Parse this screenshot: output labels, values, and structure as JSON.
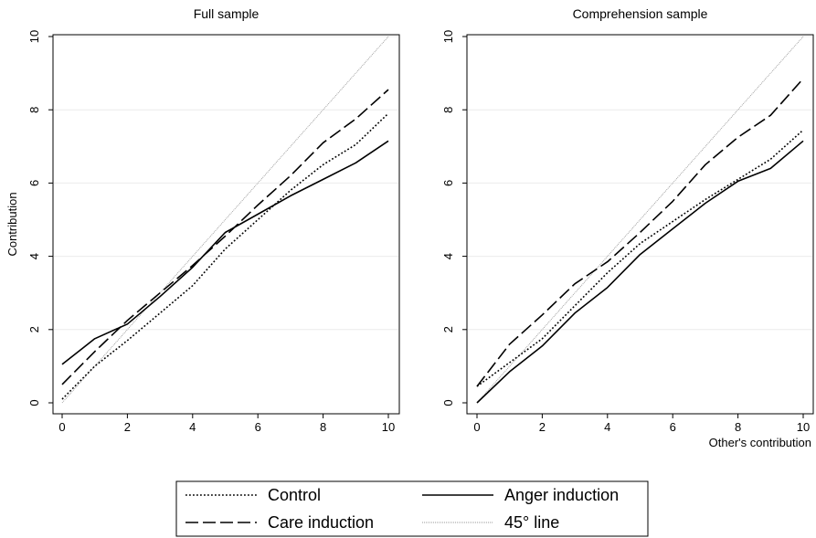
{
  "chart_data": [
    {
      "type": "line",
      "title": "Full sample",
      "xlabel": "",
      "ylabel": "Contribution",
      "xlim": [
        0,
        10
      ],
      "ylim": [
        0,
        10
      ],
      "xticks": [
        "0",
        "2",
        "4",
        "6",
        "8",
        "10"
      ],
      "yticks": [
        "0",
        "2",
        "4",
        "6",
        "8",
        "10"
      ],
      "grid": true,
      "x": [
        0,
        1,
        2,
        3,
        4,
        5,
        6,
        7,
        8,
        9,
        10
      ],
      "series": [
        {
          "name": "Control",
          "style": "dotted",
          "values": [
            0.1,
            1.0,
            1.7,
            2.45,
            3.2,
            4.2,
            5.0,
            5.8,
            6.5,
            7.05,
            7.9
          ]
        },
        {
          "name": "Anger induction",
          "style": "solid",
          "values": [
            1.05,
            1.75,
            2.15,
            2.9,
            3.7,
            4.65,
            5.15,
            5.65,
            6.1,
            6.55,
            7.15
          ]
        },
        {
          "name": "Care induction",
          "style": "dashed",
          "values": [
            0.5,
            1.4,
            2.25,
            3.0,
            3.75,
            4.55,
            5.4,
            6.2,
            7.1,
            7.75,
            8.55
          ]
        },
        {
          "name": "45° line",
          "style": "thin",
          "values": [
            0,
            1,
            2,
            3,
            4,
            5,
            6,
            7,
            8,
            9,
            10
          ]
        }
      ]
    },
    {
      "type": "line",
      "title": "Comprehension sample",
      "xlabel": "Other's contribution",
      "ylabel": "",
      "xlim": [
        0,
        10
      ],
      "ylim": [
        0,
        10
      ],
      "xticks": [
        "0",
        "2",
        "4",
        "6",
        "8",
        "10"
      ],
      "yticks": [
        "0",
        "2",
        "4",
        "6",
        "8",
        "10"
      ],
      "grid": true,
      "x": [
        0,
        1,
        2,
        3,
        4,
        5,
        6,
        7,
        8,
        9,
        10
      ],
      "series": [
        {
          "name": "Control",
          "style": "dotted",
          "values": [
            0.45,
            1.1,
            1.75,
            2.65,
            3.55,
            4.35,
            4.95,
            5.55,
            6.1,
            6.65,
            7.45
          ]
        },
        {
          "name": "Anger induction",
          "style": "solid",
          "values": [
            0.0,
            0.85,
            1.55,
            2.45,
            3.15,
            4.05,
            4.75,
            5.45,
            6.05,
            6.4,
            7.15
          ]
        },
        {
          "name": "Care induction",
          "style": "dashed",
          "values": [
            0.45,
            1.6,
            2.4,
            3.25,
            3.85,
            4.65,
            5.5,
            6.5,
            7.25,
            7.85,
            8.85
          ]
        },
        {
          "name": "45° line",
          "style": "thin",
          "values": [
            0,
            1,
            2,
            3,
            4,
            5,
            6,
            7,
            8,
            9,
            10
          ]
        }
      ]
    }
  ],
  "legend": {
    "placement": "bottom-center",
    "items": [
      {
        "label": "Control",
        "style": "dotted"
      },
      {
        "label": "Anger induction",
        "style": "solid"
      },
      {
        "label": "Care induction",
        "style": "dashed"
      },
      {
        "label": "45° line",
        "style": "thin"
      }
    ]
  }
}
